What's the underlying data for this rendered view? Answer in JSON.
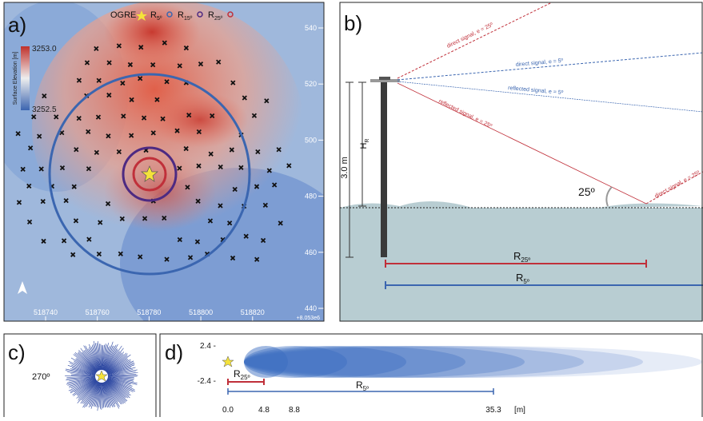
{
  "panel_a": {
    "label": "a)",
    "legend": {
      "ogre": "OGRE",
      "r5": {
        "main": "R",
        "sub": "5º"
      },
      "r15": {
        "main": "R",
        "sub": "15º"
      },
      "r25": {
        "main": "R",
        "sub": "25º"
      }
    },
    "colorbar": {
      "title": "Surface Elevation [m]",
      "max": "3253.0",
      "min": "3252.5"
    },
    "y_ticks": [
      "540",
      "520",
      "500",
      "480",
      "460",
      "440"
    ],
    "x_ticks": [
      "518740",
      "518760",
      "518780",
      "518800",
      "518820"
    ],
    "x_offset": "+8.053e6"
  },
  "panel_b": {
    "label": "b)",
    "direct_25": "direct signal, e = 25º",
    "direct_5": "direct signal, e = 5º",
    "reflected_5": "reflected signal, e = 5º",
    "reflected_25": "reflected signal, e = 25º",
    "direct_25_right": "direct signal, e = 25º",
    "height": "3.0 m",
    "hr": {
      "main": "H",
      "sub": "R"
    },
    "angle": "25º",
    "r25": {
      "main": "R",
      "sub": "25º"
    },
    "r5": {
      "main": "R",
      "sub": "5º"
    }
  },
  "panel_c": {
    "label": "c)",
    "azimuth": "270º"
  },
  "panel_d": {
    "label": "d)",
    "y_ticks": [
      "2.4 -",
      "-2.4 -"
    ],
    "r25": {
      "main": "R",
      "sub": "25º"
    },
    "r5": {
      "main": "R",
      "sub": "5º"
    },
    "x_ticks": [
      "0.0",
      "4.8",
      "8.8",
      "35.3",
      "[m]"
    ]
  }
}
